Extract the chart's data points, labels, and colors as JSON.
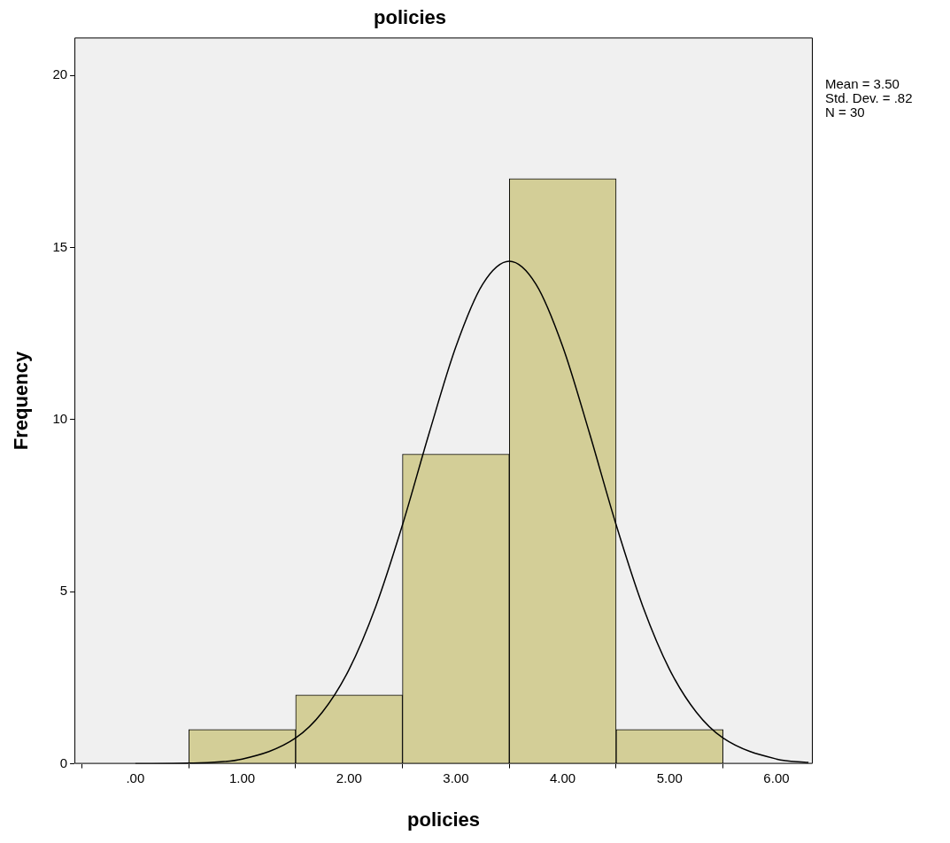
{
  "chart_data": {
    "type": "histogram",
    "title": "policies",
    "xlabel": "policies",
    "ylabel": "Frequency",
    "bins": [
      0.5,
      1.5,
      2.5,
      3.5,
      4.5,
      5.5
    ],
    "values": [
      1,
      2,
      9,
      17,
      1
    ],
    "color": "#d3ce97",
    "series": [
      {
        "type": "line",
        "color": "#000000",
        "x": [
          0,
          0.5,
          1,
          1.5,
          1.75,
          2,
          2.25,
          2.5,
          2.75,
          3,
          3.25,
          3.5,
          3.75,
          4,
          4.25,
          4.5,
          4.75,
          5,
          5.25,
          5.5,
          6,
          6.3
        ],
        "values": [
          0,
          0.02,
          0.14,
          0.75,
          1.5,
          2.74,
          4.57,
          6.94,
          9.61,
          12.12,
          13.93,
          14.6,
          13.93,
          12.12,
          9.61,
          6.94,
          4.57,
          2.74,
          1.5,
          0.75,
          0.14,
          0.04
        ]
      }
    ],
    "xlim": [
      -0.57,
      6.34
    ],
    "ylim": [
      0,
      21.1
    ],
    "xticks": [
      {
        "value": 0,
        "label": ".00"
      },
      {
        "value": 1,
        "label": "1.00"
      },
      {
        "value": 2,
        "label": "2.00"
      },
      {
        "value": 3,
        "label": "3.00"
      },
      {
        "value": 4,
        "label": "4.00"
      },
      {
        "value": 5,
        "label": "5.00"
      },
      {
        "value": 6,
        "label": "6.00"
      }
    ],
    "yticks": [
      0,
      5,
      10,
      15,
      20
    ],
    "grid": false,
    "legend": false,
    "marker": "none",
    "annotations": [
      "Mean = 3.50",
      "Std. Dev. = .82",
      "N = 30"
    ]
  }
}
